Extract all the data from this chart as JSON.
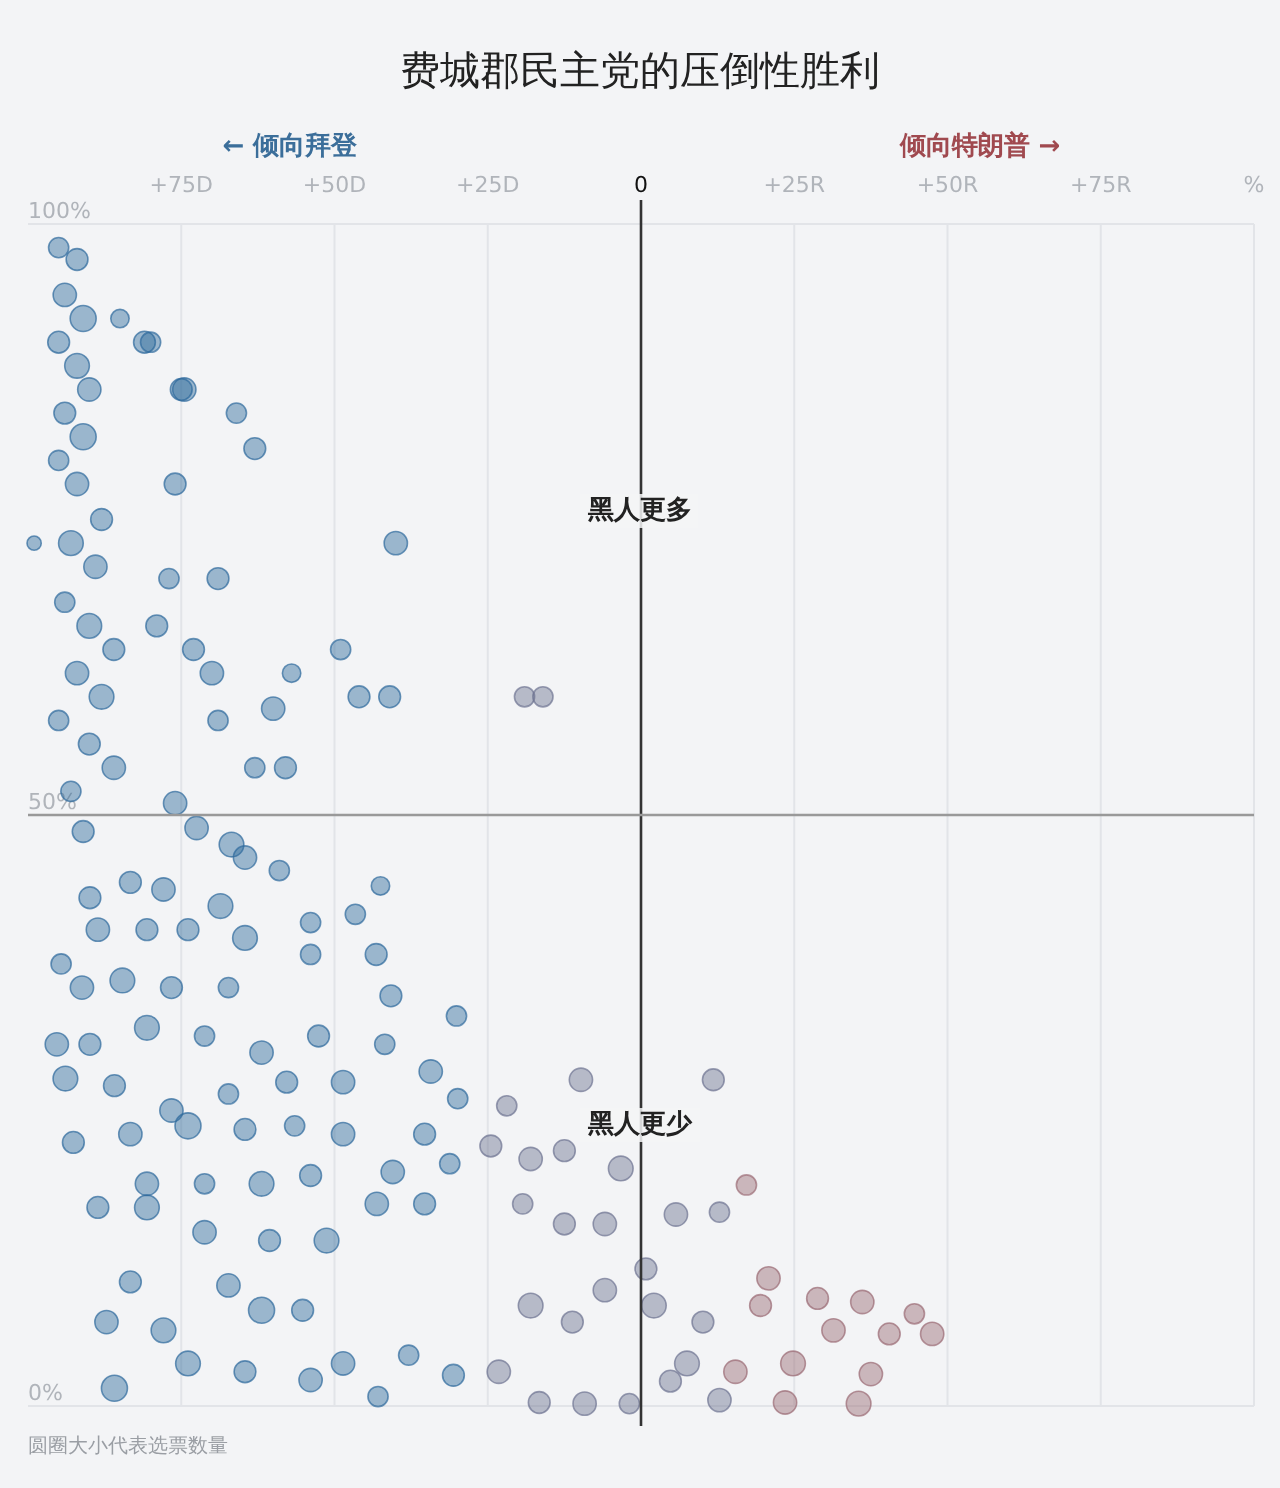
{
  "chart_data": {
    "type": "bubble",
    "title": "费城郡民主党的压倒性胜利",
    "annotations": [
      "← 倾向拜登",
      "倾向特朗普 →",
      "黑人更多",
      "黑人更少",
      "圆圈大小代表选票数量"
    ],
    "xlim": [
      -100,
      100
    ],
    "xticks": [
      {
        "value": -75,
        "label": "+75D"
      },
      {
        "value": -50,
        "label": "+50D"
      },
      {
        "value": -25,
        "label": "+25D"
      },
      0,
      {
        "value": 25,
        "label": "+25R"
      },
      {
        "value": 50,
        "label": "+50R"
      },
      {
        "value": 75,
        "label": "+75R"
      },
      {
        "value": 100,
        "label": "%"
      }
    ],
    "ylim": [
      0,
      100
    ],
    "yticks": [
      {
        "value": 0,
        "label": "0%"
      },
      {
        "value": 50,
        "label": "50%"
      },
      {
        "value": 100,
        "label": "100%"
      }
    ],
    "grid": true,
    "ref_lines": [
      {
        "axis": "x",
        "value": 0,
        "color": "#333333"
      },
      {
        "axis": "y",
        "value": 50,
        "color": "#999999"
      }
    ],
    "series": [
      {
        "color": "#2e6a9c",
        "x": [
          -95,
          -92,
          -94,
          -91,
          -95,
          -92,
          -90,
          -94,
          -91,
          -95,
          -92,
          -88,
          -93,
          -89,
          -94,
          -90,
          -86,
          -92,
          -88,
          -95,
          -90,
          -86,
          -93,
          -85,
          -81,
          -74.5,
          -66,
          -63,
          -40,
          -69,
          -57,
          -49,
          -46,
          -41,
          -60,
          -58,
          -63,
          -76,
          -75,
          -80,
          -76,
          -77,
          -73,
          -70,
          -69,
          -79,
          -99,
          -91,
          -72.5,
          -66.8,
          -94.6,
          -80.6,
          -59,
          -42.5,
          -46.6,
          -43.2,
          -53.9,
          -40.8,
          -30.1,
          -34.3,
          -29.9,
          -42.9,
          -53.9,
          -64.6,
          -73.9,
          -85.9,
          -87.2,
          -77.9,
          -83.3,
          -67.3,
          -61.9,
          -55.2,
          -48.6,
          -37.9,
          -30.6,
          -35.3,
          -43.1,
          -51.3,
          -60.6,
          -71.2,
          -80.6,
          -88.6,
          -80.6,
          -71.2,
          -61.9,
          -53.9,
          -40.5,
          -31.2,
          -92.6,
          -83.3,
          -73.9,
          -64.6,
          -56.5,
          -48.6,
          -35.3,
          -93.9,
          -85.9,
          -76.6,
          -67.3,
          -57.8,
          -48.6,
          -41.8,
          -95.3,
          -89.9,
          -80.6,
          -71.2,
          -61.9,
          -52.6,
          -91.2,
          -84.6,
          -76.6,
          -67.3,
          -88.6,
          -73.9,
          -64.6,
          -53.9,
          -89.9,
          -77.9,
          -68.6,
          -83.3,
          -64.6
        ],
        "values": [
          98,
          97,
          94,
          92,
          90,
          88,
          86,
          84,
          82,
          80,
          78,
          75,
          73,
          71,
          68,
          66,
          64,
          62,
          60,
          58,
          56,
          54,
          52,
          92,
          90,
          86,
          84,
          81,
          73,
          70,
          62,
          64,
          60,
          60,
          59,
          54,
          54,
          51,
          86,
          90,
          78,
          70,
          64,
          62,
          58,
          66,
          73,
          48.6,
          48.9,
          47.5,
          37.4,
          40.3,
          45.3,
          44,
          41.6,
          38.2,
          38.2,
          34.7,
          33,
          28.3,
          26,
          0.8,
          2.2,
          2.9,
          3.6,
          1.5,
          7.1,
          6.4,
          10.5,
          10.2,
          8.1,
          8.1,
          3.6,
          4.3,
          2.6,
          17.1,
          17.1,
          14,
          14,
          14.7,
          16.8,
          16.8,
          18.8,
          18.8,
          18.8,
          19.5,
          19.8,
          20.5,
          22.3,
          23,
          23.7,
          23.4,
          23.7,
          23,
          23,
          27.7,
          27.1,
          25,
          26.4,
          27.4,
          27.4,
          30.6,
          30.6,
          30.6,
          32,
          31.3,
          29.9,
          31.3,
          35.4,
          36,
          35.4,
          35.4,
          40.3,
          40.3,
          39.6,
          40.9,
          43,
          43.7,
          42.3,
          44.3,
          46.4
        ],
        "sizes": [
          0.6,
          0.7,
          0.8,
          1,
          0.7,
          0.9,
          0.8,
          0.7,
          1,
          0.6,
          0.8,
          0.7,
          0.9,
          0.8,
          0.6,
          0.9,
          0.7,
          0.8,
          0.9,
          0.6,
          0.7,
          0.8,
          0.6,
          0.5,
          0.7,
          0.8,
          0.6,
          0.7,
          0.8,
          0.7,
          0.5,
          0.6,
          0.7,
          0.7,
          0.8,
          0.7,
          0.6,
          0.8,
          0.7,
          0.6,
          0.7,
          0.6,
          0.7,
          0.8,
          0.6,
          0.7,
          0.3,
          0.7,
          0.8,
          0.9,
          0.6,
          0.7,
          0.6,
          0.5,
          0.6,
          0.7,
          0.6,
          0.7,
          0.6,
          0.8,
          0.6,
          0.6,
          0.8,
          0.7,
          0.9,
          1,
          0.8,
          0.9,
          0.7,
          0.8,
          1,
          0.7,
          0.8,
          0.6,
          0.7,
          0.7,
          0.8,
          0.9,
          0.7,
          0.8,
          0.9,
          0.7,
          0.8,
          0.6,
          0.9,
          0.7,
          0.8,
          0.6,
          0.7,
          0.8,
          1,
          0.7,
          0.6,
          0.8,
          0.7,
          0.9,
          0.7,
          0.8,
          0.6,
          0.7,
          0.8,
          0.6,
          0.8,
          0.7,
          0.9,
          0.6,
          0.8,
          0.7,
          0.8,
          0.9,
          0.7,
          0.6,
          0.8,
          0.7,
          0.9,
          0.6,
          0.7,
          0.8,
          0.9,
          0.7,
          0.8
        ]
      },
      {
        "color": "#6d7391",
        "x": [
          -19,
          -16,
          -9.8,
          11.8,
          -21.9,
          -3.3,
          -12.5,
          12.8,
          5.7,
          0.8,
          -5.9,
          -12.5,
          -19.3,
          -24.5,
          -18,
          -18,
          -11.2,
          -5.9,
          2.1,
          10.1,
          12.8,
          4.8,
          -1.9,
          -9.2,
          -16.6,
          -23.2,
          7.5
        ],
        "values": [
          60,
          60,
          27.6,
          27.6,
          25.4,
          20.1,
          21.6,
          16.4,
          16.2,
          11.6,
          15.4,
          15.4,
          17.1,
          22,
          20.9,
          8.5,
          7.1,
          9.8,
          8.5,
          7.1,
          0.5,
          2.1,
          0.2,
          0.2,
          0.3,
          2.9,
          3.6
        ],
        "sizes": [
          0.6,
          0.6,
          0.8,
          0.7,
          0.6,
          0.9,
          0.7,
          0.6,
          0.8,
          0.7,
          0.8,
          0.7,
          0.6,
          0.7,
          0.8,
          0.9,
          0.7,
          0.8,
          0.9,
          0.7,
          0.8,
          0.7,
          0.6,
          0.8,
          0.7,
          0.8,
          0.9
        ]
      },
      {
        "color": "#9a6a74",
        "x": [
          17.2,
          20.8,
          28.8,
          36.1,
          44.6,
          47.5,
          40.5,
          37.5,
          35.5,
          23.5,
          19.5,
          31.4,
          24.8,
          15.4
        ],
        "values": [
          18.7,
          10.8,
          9.1,
          8.8,
          7.8,
          6.1,
          6.1,
          2.7,
          0.2,
          0.3,
          8.5,
          6.4,
          3.6,
          2.9
        ],
        "sizes": [
          0.6,
          0.8,
          0.7,
          0.8,
          0.6,
          0.8,
          0.7,
          0.8,
          0.9,
          0.8,
          0.7,
          0.8,
          0.9,
          0.8
        ]
      }
    ]
  }
}
